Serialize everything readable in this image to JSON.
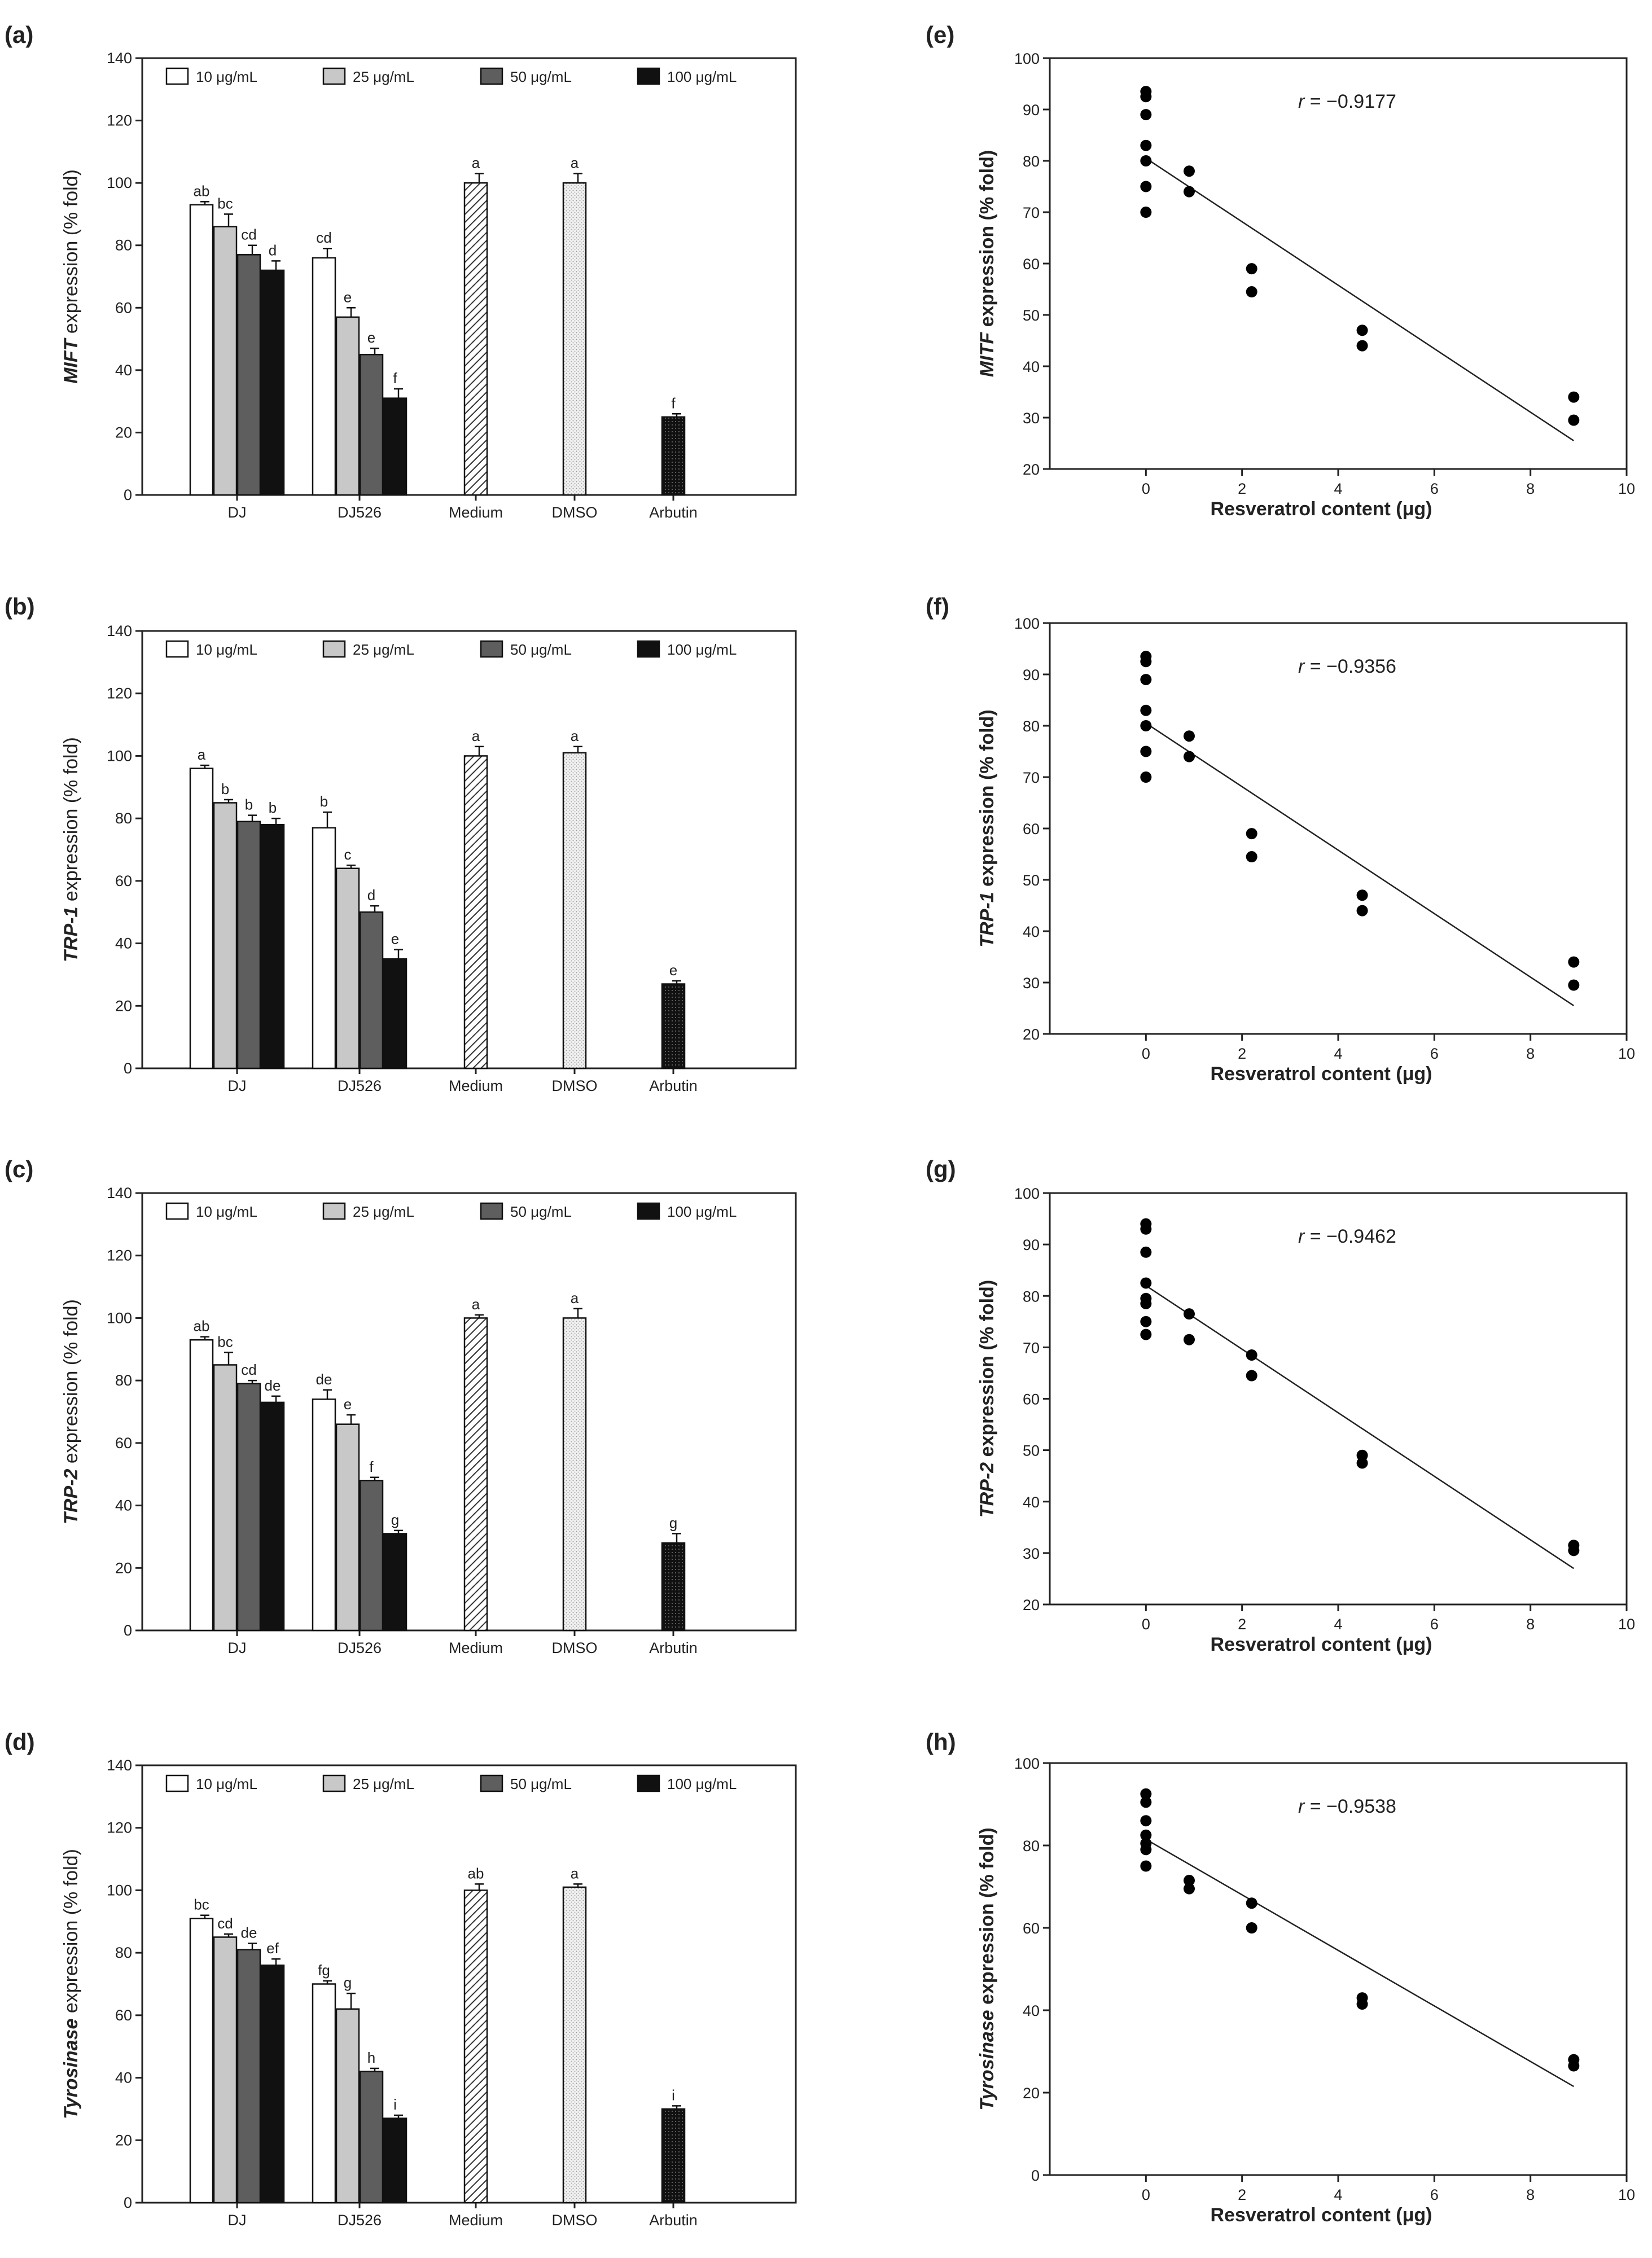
{
  "chart_data": [
    {
      "panel": "(a)",
      "type": "bar",
      "ylabel_italic": "MIFT",
      "ylabel_rest": " expression (% fold)",
      "ylim": [
        0,
        140
      ],
      "yticks": [
        0,
        20,
        40,
        60,
        80,
        100,
        120,
        140
      ],
      "legend": [
        "10 μg/mL",
        "25 μg/mL",
        "50 μg/mL",
        "100 μg/mL"
      ],
      "categories": [
        "DJ",
        "DJ526",
        "Medium",
        "DMSO",
        "Arbutin"
      ],
      "bars": [
        {
          "cat": 0,
          "series": 0,
          "value": 93,
          "err": 1,
          "sig": "ab"
        },
        {
          "cat": 0,
          "series": 1,
          "value": 86,
          "err": 4,
          "sig": "bc"
        },
        {
          "cat": 0,
          "series": 2,
          "value": 77,
          "err": 3,
          "sig": "cd"
        },
        {
          "cat": 0,
          "series": 3,
          "value": 72,
          "err": 3,
          "sig": "d"
        },
        {
          "cat": 1,
          "series": 0,
          "value": 76,
          "err": 3,
          "sig": "cd"
        },
        {
          "cat": 1,
          "series": 1,
          "value": 57,
          "err": 3,
          "sig": "e"
        },
        {
          "cat": 1,
          "series": 2,
          "value": 45,
          "err": 2,
          "sig": "e"
        },
        {
          "cat": 1,
          "series": 3,
          "value": 31,
          "err": 3,
          "sig": "f"
        },
        {
          "cat": 2,
          "series": "medium",
          "value": 100,
          "err": 3,
          "sig": "a"
        },
        {
          "cat": 3,
          "series": "dmso",
          "value": 100,
          "err": 3,
          "sig": "a"
        },
        {
          "cat": 4,
          "series": "arbutin",
          "value": 25,
          "err": 1,
          "sig": "f"
        }
      ]
    },
    {
      "panel": "(b)",
      "type": "bar",
      "ylabel_italic": "TRP-1",
      "ylabel_rest": " expression (% fold)",
      "ylim": [
        0,
        140
      ],
      "yticks": [
        0,
        20,
        40,
        60,
        80,
        100,
        120,
        140
      ],
      "legend": [
        "10 μg/mL",
        "25 μg/mL",
        "50 μg/mL",
        "100 μg/mL"
      ],
      "categories": [
        "DJ",
        "DJ526",
        "Medium",
        "DMSO",
        "Arbutin"
      ],
      "bars": [
        {
          "cat": 0,
          "series": 0,
          "value": 96,
          "err": 1,
          "sig": "a"
        },
        {
          "cat": 0,
          "series": 1,
          "value": 85,
          "err": 1,
          "sig": "b"
        },
        {
          "cat": 0,
          "series": 2,
          "value": 79,
          "err": 2,
          "sig": "b"
        },
        {
          "cat": 0,
          "series": 3,
          "value": 78,
          "err": 2,
          "sig": "b"
        },
        {
          "cat": 1,
          "series": 0,
          "value": 77,
          "err": 5,
          "sig": "b"
        },
        {
          "cat": 1,
          "series": 1,
          "value": 64,
          "err": 1,
          "sig": "c"
        },
        {
          "cat": 1,
          "series": 2,
          "value": 50,
          "err": 2,
          "sig": "d"
        },
        {
          "cat": 1,
          "series": 3,
          "value": 35,
          "err": 3,
          "sig": "e"
        },
        {
          "cat": 2,
          "series": "medium",
          "value": 100,
          "err": 3,
          "sig": "a"
        },
        {
          "cat": 3,
          "series": "dmso",
          "value": 101,
          "err": 2,
          "sig": "a"
        },
        {
          "cat": 4,
          "series": "arbutin",
          "value": 27,
          "err": 1,
          "sig": "e"
        }
      ]
    },
    {
      "panel": "(c)",
      "type": "bar",
      "ylabel_italic": "TRP-2",
      "ylabel_rest": " expression (% fold)",
      "ylim": [
        0,
        140
      ],
      "yticks": [
        0,
        20,
        40,
        60,
        80,
        100,
        120,
        140
      ],
      "legend": [
        "10 μg/mL",
        "25 μg/mL",
        "50 μg/mL",
        "100 μg/mL"
      ],
      "categories": [
        "DJ",
        "DJ526",
        "Medium",
        "DMSO",
        "Arbutin"
      ],
      "bars": [
        {
          "cat": 0,
          "series": 0,
          "value": 93,
          "err": 1,
          "sig": "ab"
        },
        {
          "cat": 0,
          "series": 1,
          "value": 85,
          "err": 4,
          "sig": "bc"
        },
        {
          "cat": 0,
          "series": 2,
          "value": 79,
          "err": 1,
          "sig": "cd"
        },
        {
          "cat": 0,
          "series": 3,
          "value": 73,
          "err": 2,
          "sig": "de"
        },
        {
          "cat": 1,
          "series": 0,
          "value": 74,
          "err": 3,
          "sig": "de"
        },
        {
          "cat": 1,
          "series": 1,
          "value": 66,
          "err": 3,
          "sig": "e"
        },
        {
          "cat": 1,
          "series": 2,
          "value": 48,
          "err": 1,
          "sig": "f"
        },
        {
          "cat": 1,
          "series": 3,
          "value": 31,
          "err": 1,
          "sig": "g"
        },
        {
          "cat": 2,
          "series": "medium",
          "value": 100,
          "err": 1,
          "sig": "a"
        },
        {
          "cat": 3,
          "series": "dmso",
          "value": 100,
          "err": 3,
          "sig": "a"
        },
        {
          "cat": 4,
          "series": "arbutin",
          "value": 28,
          "err": 3,
          "sig": "g"
        }
      ]
    },
    {
      "panel": "(d)",
      "type": "bar",
      "ylabel_italic": "Tyrosinase",
      "ylabel_rest": " expression (% fold)",
      "ylim": [
        0,
        140
      ],
      "yticks": [
        0,
        20,
        40,
        60,
        80,
        100,
        120,
        140
      ],
      "legend": [
        "10 μg/mL",
        "25 μg/mL",
        "50 μg/mL",
        "100 μg/mL"
      ],
      "categories": [
        "DJ",
        "DJ526",
        "Medium",
        "DMSO",
        "Arbutin"
      ],
      "bars": [
        {
          "cat": 0,
          "series": 0,
          "value": 91,
          "err": 1,
          "sig": "bc"
        },
        {
          "cat": 0,
          "series": 1,
          "value": 85,
          "err": 1,
          "sig": "cd"
        },
        {
          "cat": 0,
          "series": 2,
          "value": 81,
          "err": 2,
          "sig": "de"
        },
        {
          "cat": 0,
          "series": 3,
          "value": 76,
          "err": 2,
          "sig": "ef"
        },
        {
          "cat": 1,
          "series": 0,
          "value": 70,
          "err": 1,
          "sig": "fg"
        },
        {
          "cat": 1,
          "series": 1,
          "value": 62,
          "err": 5,
          "sig": "g"
        },
        {
          "cat": 1,
          "series": 2,
          "value": 42,
          "err": 1,
          "sig": "h"
        },
        {
          "cat": 1,
          "series": 3,
          "value": 27,
          "err": 1,
          "sig": "i"
        },
        {
          "cat": 2,
          "series": "medium",
          "value": 100,
          "err": 2,
          "sig": "ab"
        },
        {
          "cat": 3,
          "series": "dmso",
          "value": 101,
          "err": 1,
          "sig": "a"
        },
        {
          "cat": 4,
          "series": "arbutin",
          "value": 30,
          "err": 1,
          "sig": "i"
        }
      ]
    },
    {
      "panel": "(e)",
      "type": "scatter",
      "ylabel_italic": "MITF",
      "ylabel_rest": " expression (% fold)",
      "xlabel": "Resveratrol content (μg)",
      "xlim": [
        -2,
        10
      ],
      "xticks": [
        0,
        2,
        4,
        6,
        8,
        10
      ],
      "ylim": [
        20,
        100
      ],
      "yticks": [
        20,
        30,
        40,
        50,
        60,
        70,
        80,
        90,
        100
      ],
      "r_label": "r",
      "r_value": " = −0.9177",
      "points": [
        [
          0,
          93.5
        ],
        [
          0,
          92.5
        ],
        [
          0,
          89
        ],
        [
          0,
          83
        ],
        [
          0,
          80
        ],
        [
          0,
          75
        ],
        [
          0,
          70
        ],
        [
          0.9,
          78
        ],
        [
          0.9,
          74
        ],
        [
          2.2,
          59
        ],
        [
          2.2,
          54.5
        ],
        [
          4.5,
          47
        ],
        [
          4.5,
          44
        ],
        [
          8.9,
          34
        ],
        [
          8.9,
          29.5
        ]
      ],
      "fit": [
        [
          0,
          80.5
        ],
        [
          8.9,
          25.5
        ]
      ]
    },
    {
      "panel": "(f)",
      "type": "scatter",
      "ylabel_italic": "TRP-1",
      "ylabel_rest": " expression (% fold)",
      "xlabel": "Resveratrol content (μg)",
      "xlim": [
        -2,
        10
      ],
      "xticks": [
        0,
        2,
        4,
        6,
        8,
        10
      ],
      "ylim": [
        20,
        100
      ],
      "yticks": [
        20,
        30,
        40,
        50,
        60,
        70,
        80,
        90,
        100
      ],
      "r_label": "r",
      "r_value": " = −0.9356",
      "points": [
        [
          0,
          93.5
        ],
        [
          0,
          92.5
        ],
        [
          0,
          89
        ],
        [
          0,
          83
        ],
        [
          0,
          80
        ],
        [
          0,
          75
        ],
        [
          0,
          70
        ],
        [
          0.9,
          78
        ],
        [
          0.9,
          74
        ],
        [
          2.2,
          59
        ],
        [
          2.2,
          54.5
        ],
        [
          4.5,
          47
        ],
        [
          4.5,
          44
        ],
        [
          8.9,
          34
        ],
        [
          8.9,
          29.5
        ]
      ],
      "fit": [
        [
          0,
          80.5
        ],
        [
          8.9,
          25.5
        ]
      ]
    },
    {
      "panel": "(g)",
      "type": "scatter",
      "ylabel_italic": "TRP-2",
      "ylabel_rest": " expression (% fold)",
      "xlabel": "Resveratrol content (μg)",
      "xlim": [
        -2,
        10
      ],
      "xticks": [
        0,
        2,
        4,
        6,
        8,
        10
      ],
      "ylim": [
        20,
        100
      ],
      "yticks": [
        20,
        30,
        40,
        50,
        60,
        70,
        80,
        90,
        100
      ],
      "r_label": "r",
      "r_value": " = −0.9462",
      "points": [
        [
          0,
          94
        ],
        [
          0,
          93
        ],
        [
          0,
          88.5
        ],
        [
          0,
          82.5
        ],
        [
          0,
          79.5
        ],
        [
          0,
          78.5
        ],
        [
          0,
          75
        ],
        [
          0,
          72.5
        ],
        [
          0.9,
          76.5
        ],
        [
          0.9,
          71.5
        ],
        [
          2.2,
          68.5
        ],
        [
          2.2,
          64.5
        ],
        [
          4.5,
          49
        ],
        [
          4.5,
          47.5
        ],
        [
          8.9,
          31.5
        ],
        [
          8.9,
          30.5
        ]
      ],
      "fit": [
        [
          0,
          82
        ],
        [
          8.9,
          27
        ]
      ]
    },
    {
      "panel": "(h)",
      "type": "scatter",
      "ylabel_italic": "Tyrosinase",
      "ylabel_rest": " expression (% fold)",
      "xlabel": "Resveratrol content (μg)",
      "xlim": [
        -2,
        10
      ],
      "xticks": [
        0,
        2,
        4,
        6,
        8,
        10
      ],
      "ylim": [
        0,
        100
      ],
      "yticks": [
        0,
        20,
        40,
        60,
        80,
        100
      ],
      "r_label": "r",
      "r_value": " = −0.9538",
      "points": [
        [
          0,
          92.5
        ],
        [
          0,
          90.5
        ],
        [
          0,
          86
        ],
        [
          0,
          82.5
        ],
        [
          0,
          80.5
        ],
        [
          0,
          79
        ],
        [
          0,
          75
        ],
        [
          0.9,
          71.5
        ],
        [
          0.9,
          69.5
        ],
        [
          2.2,
          66
        ],
        [
          2.2,
          60
        ],
        [
          4.5,
          43
        ],
        [
          4.5,
          41.5
        ],
        [
          8.9,
          28
        ],
        [
          8.9,
          26.5
        ]
      ],
      "fit": [
        [
          0,
          81.5
        ],
        [
          8.9,
          21.5
        ]
      ]
    }
  ]
}
